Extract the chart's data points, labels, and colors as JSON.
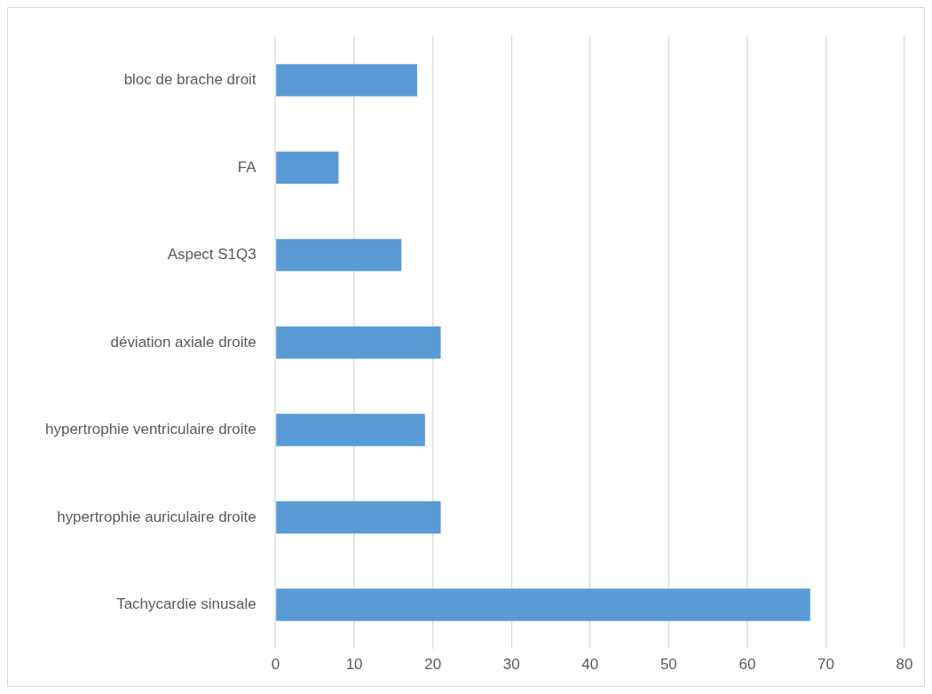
{
  "chart_data": {
    "type": "bar",
    "orientation": "horizontal",
    "categories": [
      "bloc de brache droit",
      "FA",
      "Aspect S1Q3",
      "déviation axiale droite",
      "hypertrophie ventriculaire droite",
      "hypertrophie auriculaire droite",
      "Tachycardie sinusale"
    ],
    "values": [
      18,
      8,
      16,
      21,
      19,
      21,
      68
    ],
    "color": "#5b9bd5",
    "xlim": [
      0,
      80
    ],
    "xticks": [
      0,
      10,
      20,
      30,
      40,
      50,
      60,
      70,
      80
    ],
    "grid": "x",
    "legend": false
  }
}
